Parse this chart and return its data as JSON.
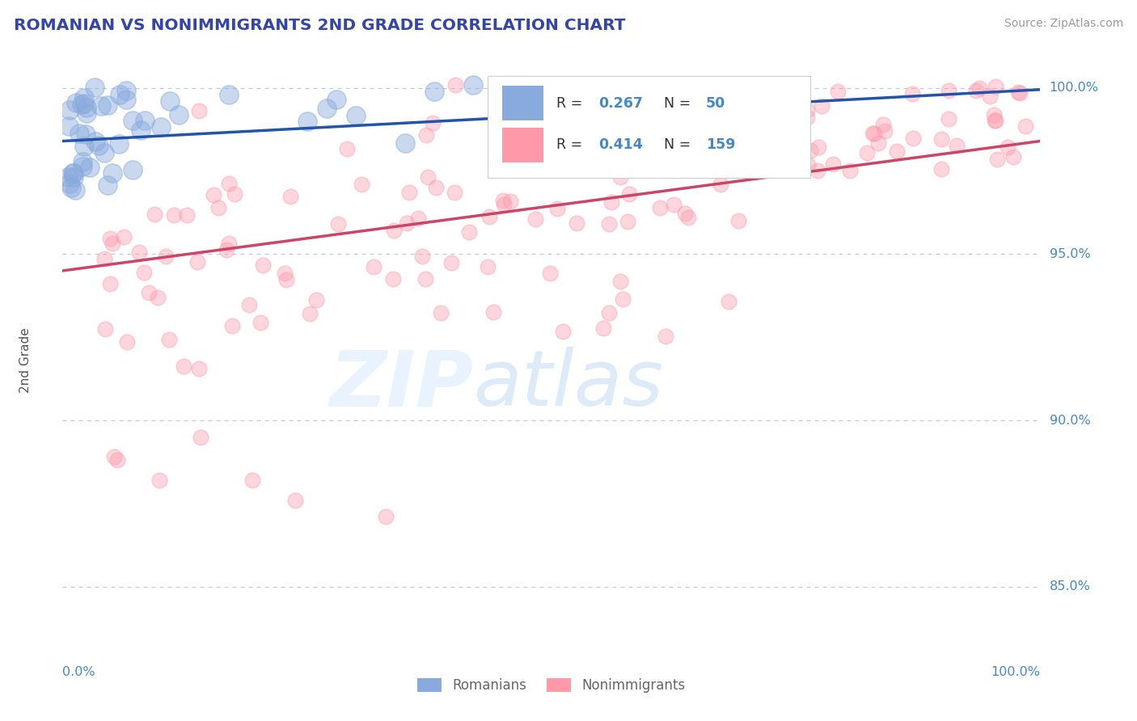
{
  "title": "ROMANIAN VS NONIMMIGRANTS 2ND GRADE CORRELATION CHART",
  "source": "Source: ZipAtlas.com",
  "ylabel": "2nd Grade",
  "xlim": [
    0.0,
    1.0
  ],
  "ylim": [
    0.828,
    1.008
  ],
  "yticks": [
    0.85,
    0.9,
    0.95,
    1.0
  ],
  "ytick_labels": [
    "85.0%",
    "90.0%",
    "95.0%",
    "100.0%"
  ],
  "xtick_labels": [
    "0.0%",
    "100.0%"
  ],
  "title_color": "#3344aa",
  "axis_color": "#4488cc",
  "background_color": "#ffffff",
  "grid_color": "#bbccdd",
  "blue_color": "#88aadd",
  "pink_color": "#ff99aa",
  "blue_line_color": "#2255aa",
  "pink_line_color": "#cc4466",
  "blue_line_y0": 0.984,
  "blue_line_y1": 0.9995,
  "pink_line_y0": 0.945,
  "pink_line_y1": 0.984,
  "legend_r_blue": "0.267",
  "legend_n_blue": "50",
  "legend_r_pink": "0.414",
  "legend_n_pink": "159"
}
